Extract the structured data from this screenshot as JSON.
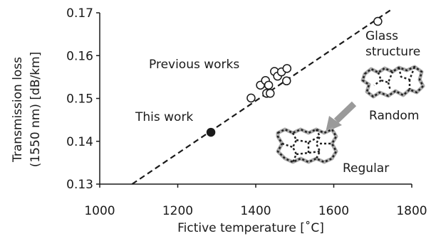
{
  "chart_data": {
    "type": "scatter",
    "title": "",
    "xlabel": "Fictive temperature [˚C]",
    "ylabel": "Transmission loss (1550 nm) [dB/km]",
    "ylabel_lines": [
      "Transmission loss",
      "(1550 nm) [dB/km]"
    ],
    "xlim": [
      1000,
      1800
    ],
    "ylim": [
      0.13,
      0.17
    ],
    "x_ticks": [
      1000,
      1200,
      1400,
      1600,
      1800
    ],
    "y_ticks": [
      0.13,
      0.14,
      0.15,
      0.16,
      0.17
    ],
    "x_tick_labels": [
      "1000",
      "1200",
      "1400",
      "1600",
      "1800"
    ],
    "y_tick_labels": [
      "0.13",
      "0.14",
      "0.15",
      "0.16",
      "0.17"
    ],
    "grid": false,
    "series": [
      {
        "name": "Previous works",
        "marker": "open-circle",
        "points": [
          {
            "x": 1388,
            "y": 0.1501
          },
          {
            "x": 1412,
            "y": 0.1531
          },
          {
            "x": 1425,
            "y": 0.1542
          },
          {
            "x": 1428,
            "y": 0.1512
          },
          {
            "x": 1437,
            "y": 0.1512
          },
          {
            "x": 1433,
            "y": 0.1531
          },
          {
            "x": 1448,
            "y": 0.1563
          },
          {
            "x": 1456,
            "y": 0.1552
          },
          {
            "x": 1466,
            "y": 0.1562
          },
          {
            "x": 1479,
            "y": 0.1541
          },
          {
            "x": 1480,
            "y": 0.157
          },
          {
            "x": 1713,
            "y": 0.168
          }
        ]
      },
      {
        "name": "This work",
        "marker": "filled-circle",
        "points": [
          {
            "x": 1285,
            "y": 0.1421
          }
        ]
      }
    ],
    "trend_line": {
      "style": "dashed",
      "from": {
        "x": 1083,
        "y": 0.13
      },
      "to": {
        "x": 1745,
        "y": 0.1706
      }
    },
    "annotations": {
      "previous_works": "Previous works",
      "this_work": "This work",
      "glass_line1": "Glass",
      "glass_line2": "structure",
      "random": "Random",
      "regular": "Regular"
    },
    "colors": {
      "axis": "#1a1a1a",
      "marker": "#1a1a1a",
      "arrow": "#9a9a9a",
      "structure_dark": "#222222",
      "structure_light": "#aaaaaa"
    }
  }
}
